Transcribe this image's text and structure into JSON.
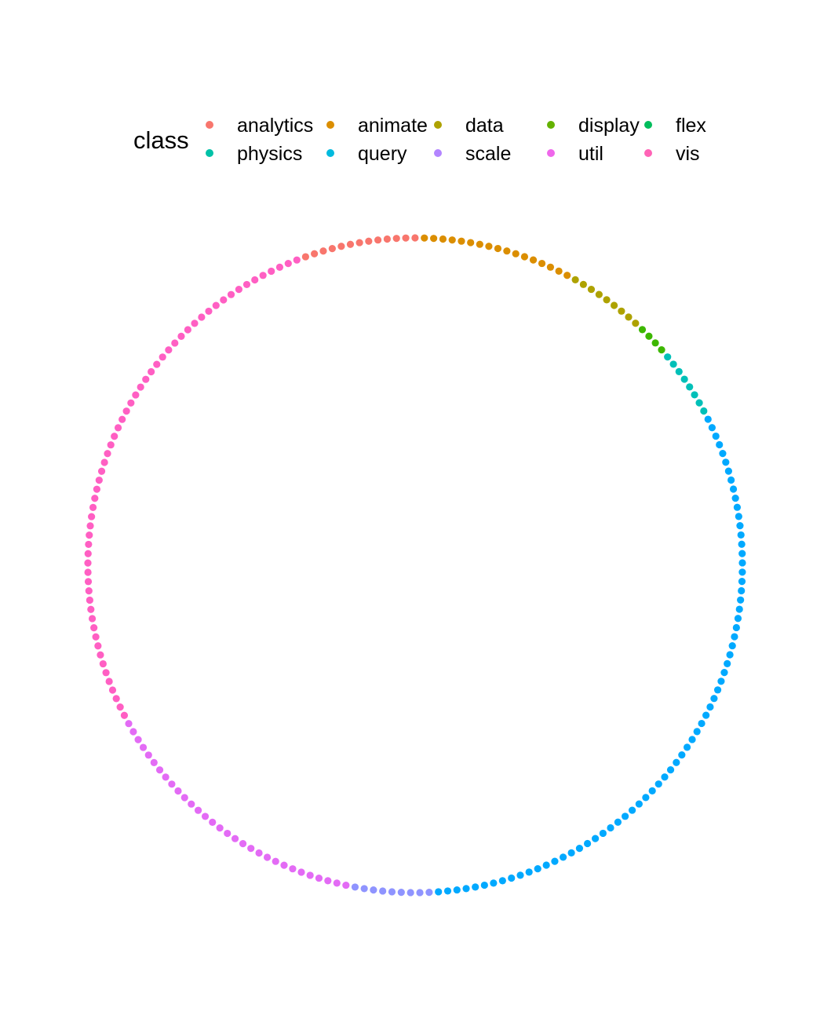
{
  "chart_data": {
    "type": "scatter",
    "layout": "circular",
    "legend": {
      "title": "class",
      "position": "top",
      "ncol": 5,
      "nrow": 2,
      "byrow": true
    },
    "classes": [
      {
        "name": "analytics",
        "color": "#F8766D",
        "count": 13
      },
      {
        "name": "animate",
        "color": "#DB8E00",
        "count": 17
      },
      {
        "name": "data",
        "color": "#AEA200",
        "count": 9
      },
      {
        "name": "display",
        "color": "#64B200",
        "count": 4
      },
      {
        "name": "flex",
        "color": "#00BD5C",
        "count": 0
      },
      {
        "name": "physics",
        "color": "#00C1A7",
        "count": 8
      },
      {
        "name": "query",
        "color": "#00BADE",
        "count": 70
      },
      {
        "name": "scale",
        "color": "#B385FF",
        "count": 9
      },
      {
        "name": "util",
        "color": "#EF67EB",
        "count": 31
      },
      {
        "name": "vis",
        "color": "#FF63B6",
        "count": 60
      }
    ],
    "point_colors": {
      "query": "#00A9FF",
      "scale": "#8F94FF",
      "util": "#E36BF5",
      "vis": "#FF5FC3",
      "physics": "#00C0B8",
      "display": "#3DB700",
      "flex": "#00BD8A"
    },
    "start_class": "animate",
    "direction": "clockwise",
    "total_points": 221
  }
}
